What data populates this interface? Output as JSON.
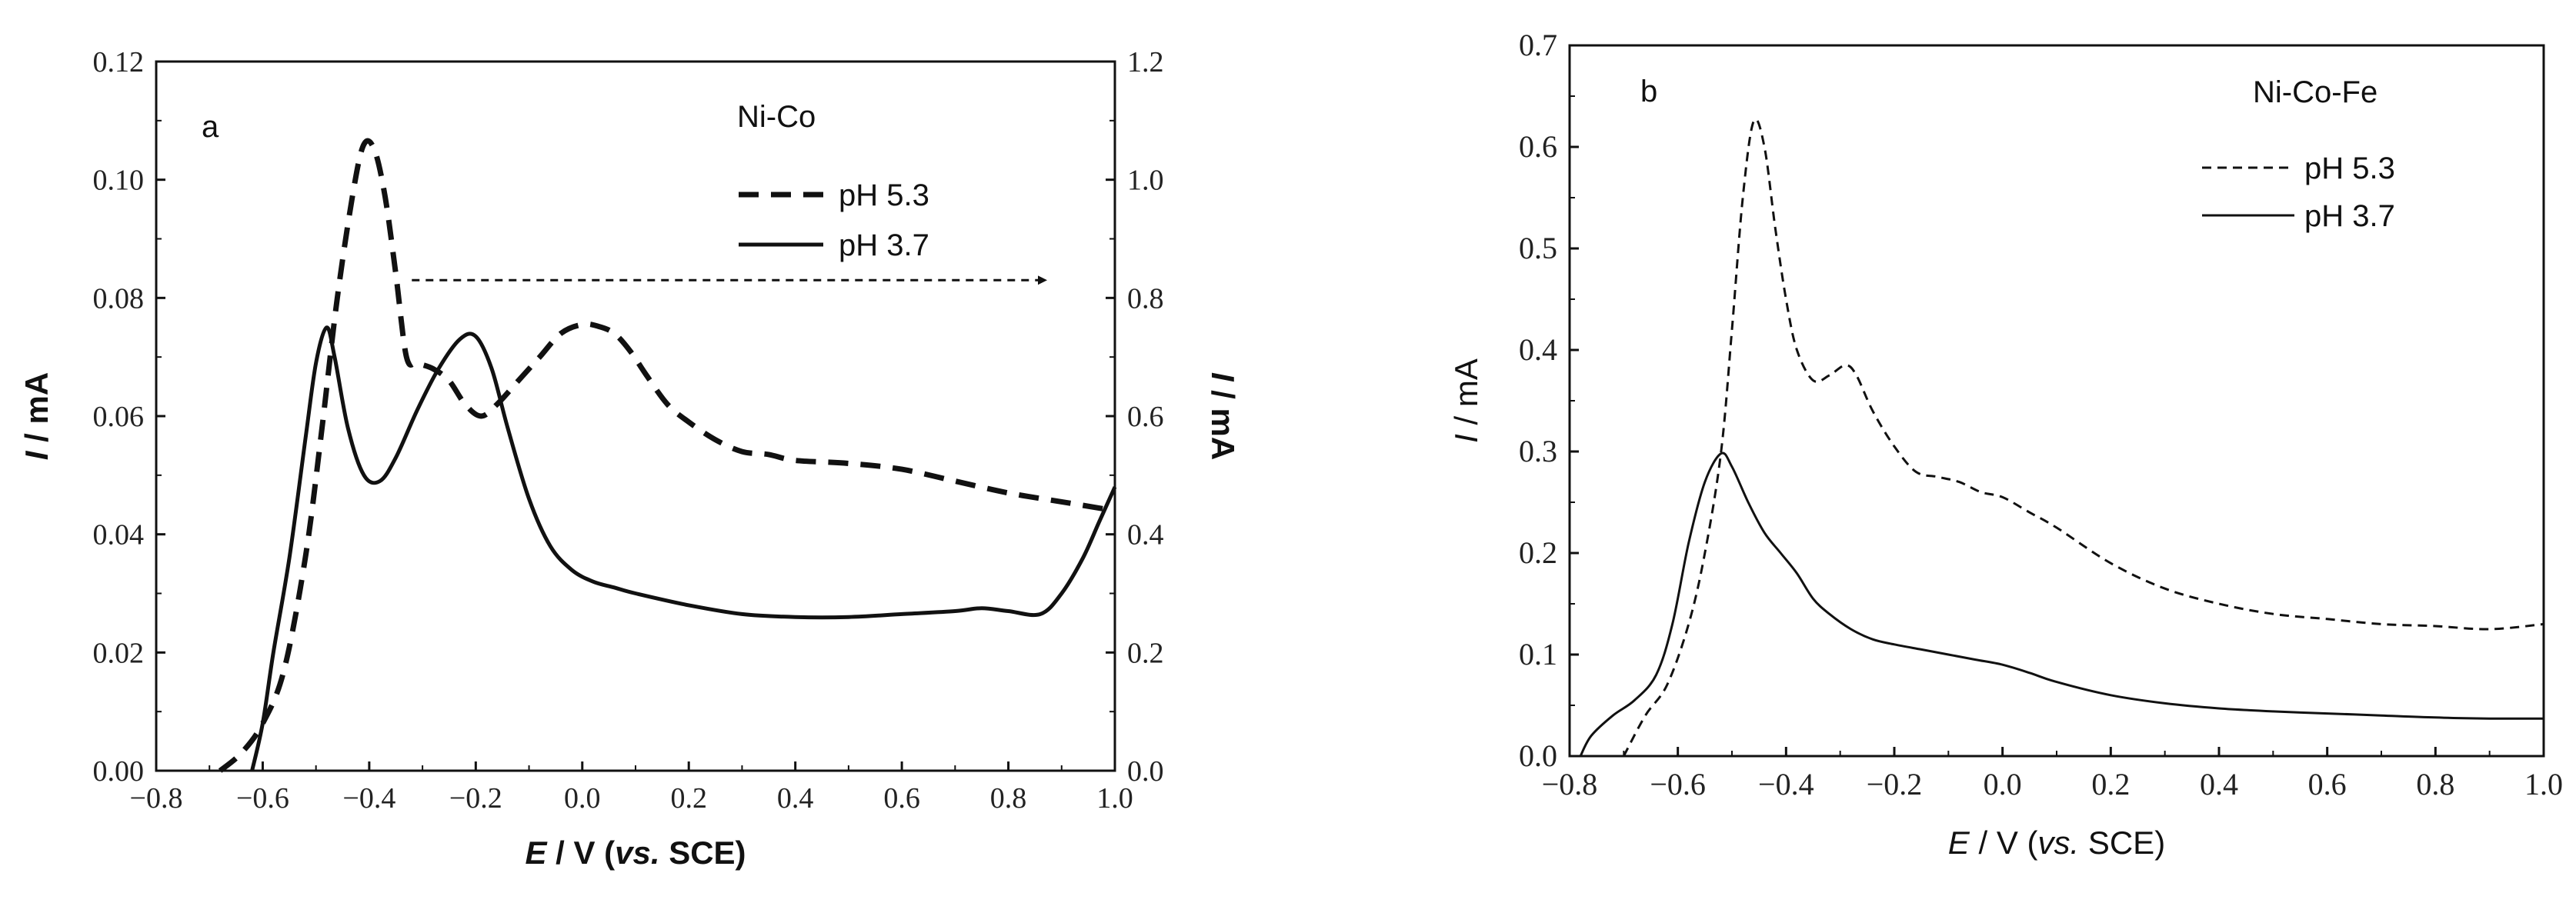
{
  "chart_data": [
    {
      "panel": "a",
      "type": "line",
      "panel_label": "a",
      "annotation": "Ni-Co",
      "xlabel_italic": "E",
      "xlabel_rest": " / V (",
      "xlabel_vs": "vs.",
      "xlabel_end": " SCE)",
      "ylabel_italic": "I",
      "ylabel_rest": " / mA",
      "y2label_italic": "I",
      "y2label_rest": " / mA",
      "xlim": [
        -0.8,
        1.0
      ],
      "ylim": [
        0,
        0.12
      ],
      "y2lim": [
        0,
        1.2
      ],
      "xticks": [
        "−0.8",
        "−0.6",
        "−0.4",
        "−0.2",
        "0.0",
        "0.2",
        "0.4",
        "0.6",
        "0.8",
        "1.0"
      ],
      "yticks": [
        "0.00",
        "0.02",
        "0.04",
        "0.06",
        "0.08",
        "0.10",
        "0.12"
      ],
      "y2ticks": [
        "0.0",
        "0.2",
        "0.4",
        "0.6",
        "0.8",
        "1.0",
        "1.2"
      ],
      "arrow": {
        "from_x": -0.32,
        "to_x": 0.87,
        "y": 0.083,
        "points_to": "right axis"
      },
      "series": [
        {
          "name": "pH 5.3",
          "style": "dashed",
          "axis": "right",
          "x": [
            -0.68,
            -0.64,
            -0.6,
            -0.56,
            -0.52,
            -0.49,
            -0.46,
            -0.43,
            -0.41,
            -0.39,
            -0.37,
            -0.35,
            -0.33,
            -0.31,
            -0.28,
            -0.25,
            -0.22,
            -0.19,
            -0.16,
            -0.12,
            -0.08,
            -0.04,
            0.0,
            0.03,
            0.06,
            0.09,
            0.12,
            0.16,
            0.2,
            0.25,
            0.3,
            0.35,
            0.4,
            0.5,
            0.6,
            0.7,
            0.8,
            0.9,
            1.0
          ],
          "y": [
            0.0,
            0.03,
            0.08,
            0.17,
            0.36,
            0.57,
            0.8,
            0.98,
            1.06,
            1.05,
            0.97,
            0.84,
            0.7,
            0.69,
            0.68,
            0.66,
            0.62,
            0.6,
            0.62,
            0.66,
            0.7,
            0.74,
            0.755,
            0.752,
            0.74,
            0.71,
            0.67,
            0.62,
            0.59,
            0.56,
            0.54,
            0.535,
            0.525,
            0.52,
            0.51,
            0.49,
            0.47,
            0.455,
            0.44
          ]
        },
        {
          "name": "pH 3.7",
          "style": "solid",
          "axis": "left",
          "x": [
            -0.62,
            -0.6,
            -0.58,
            -0.55,
            -0.52,
            -0.5,
            -0.48,
            -0.465,
            -0.44,
            -0.41,
            -0.38,
            -0.35,
            -0.31,
            -0.27,
            -0.23,
            -0.2,
            -0.17,
            -0.14,
            -0.1,
            -0.06,
            -0.02,
            0.02,
            0.06,
            0.1,
            0.2,
            0.3,
            0.4,
            0.5,
            0.6,
            0.7,
            0.75,
            0.8,
            0.86,
            0.9,
            0.94,
            0.97,
            1.0
          ],
          "y": [
            0.0,
            0.008,
            0.02,
            0.036,
            0.056,
            0.069,
            0.075,
            0.07,
            0.058,
            0.05,
            0.049,
            0.053,
            0.061,
            0.068,
            0.073,
            0.0735,
            0.068,
            0.058,
            0.046,
            0.038,
            0.034,
            0.032,
            0.031,
            0.03,
            0.028,
            0.0265,
            0.026,
            0.026,
            0.0265,
            0.027,
            0.0275,
            0.027,
            0.0265,
            0.03,
            0.036,
            0.042,
            0.048
          ]
        }
      ]
    },
    {
      "panel": "b",
      "type": "line",
      "panel_label": "b",
      "annotation": "Ni-Co-Fe",
      "xlabel_italic": "E",
      "xlabel_rest": " / V (",
      "xlabel_vs": "vs.",
      "xlabel_end": " SCE)",
      "ylabel_italic": "I",
      "ylabel_rest": " / mA",
      "xlim": [
        -0.8,
        1.0
      ],
      "ylim": [
        0,
        0.7
      ],
      "xticks": [
        "−0.8",
        "−0.6",
        "−0.4",
        "−0.2",
        "0.0",
        "0.2",
        "0.4",
        "0.6",
        "0.8",
        "1.0"
      ],
      "yticks": [
        "0.0",
        "0.1",
        "0.2",
        "0.3",
        "0.4",
        "0.5",
        "0.6",
        "0.7"
      ],
      "series": [
        {
          "name": "pH 5.3",
          "style": "dashed",
          "x": [
            -0.7,
            -0.66,
            -0.62,
            -0.58,
            -0.55,
            -0.52,
            -0.5,
            -0.48,
            -0.46,
            -0.44,
            -0.42,
            -0.4,
            -0.38,
            -0.35,
            -0.32,
            -0.29,
            -0.27,
            -0.24,
            -0.2,
            -0.16,
            -0.12,
            -0.08,
            -0.04,
            0.0,
            0.05,
            0.1,
            0.2,
            0.3,
            0.4,
            0.5,
            0.6,
            0.7,
            0.8,
            0.9,
            1.0
          ],
          "y": [
            0.0,
            0.04,
            0.07,
            0.13,
            0.2,
            0.3,
            0.42,
            0.55,
            0.625,
            0.6,
            0.52,
            0.45,
            0.4,
            0.37,
            0.375,
            0.385,
            0.375,
            0.34,
            0.305,
            0.28,
            0.275,
            0.27,
            0.26,
            0.255,
            0.24,
            0.225,
            0.19,
            0.165,
            0.15,
            0.14,
            0.135,
            0.13,
            0.128,
            0.125,
            0.13
          ]
        },
        {
          "name": "pH 3.7",
          "style": "solid",
          "x": [
            -0.78,
            -0.76,
            -0.72,
            -0.68,
            -0.64,
            -0.61,
            -0.58,
            -0.55,
            -0.52,
            -0.5,
            -0.47,
            -0.44,
            -0.41,
            -0.38,
            -0.35,
            -0.32,
            -0.28,
            -0.24,
            -0.2,
            -0.15,
            -0.1,
            -0.05,
            0.0,
            0.05,
            0.1,
            0.2,
            0.3,
            0.4,
            0.5,
            0.6,
            0.7,
            0.8,
            0.9,
            1.0
          ],
          "y": [
            0.0,
            0.02,
            0.04,
            0.055,
            0.08,
            0.13,
            0.21,
            0.27,
            0.298,
            0.285,
            0.25,
            0.22,
            0.2,
            0.18,
            0.155,
            0.14,
            0.125,
            0.115,
            0.11,
            0.105,
            0.1,
            0.095,
            0.09,
            0.082,
            0.073,
            0.06,
            0.052,
            0.047,
            0.044,
            0.042,
            0.04,
            0.038,
            0.037,
            0.037
          ]
        }
      ]
    }
  ]
}
